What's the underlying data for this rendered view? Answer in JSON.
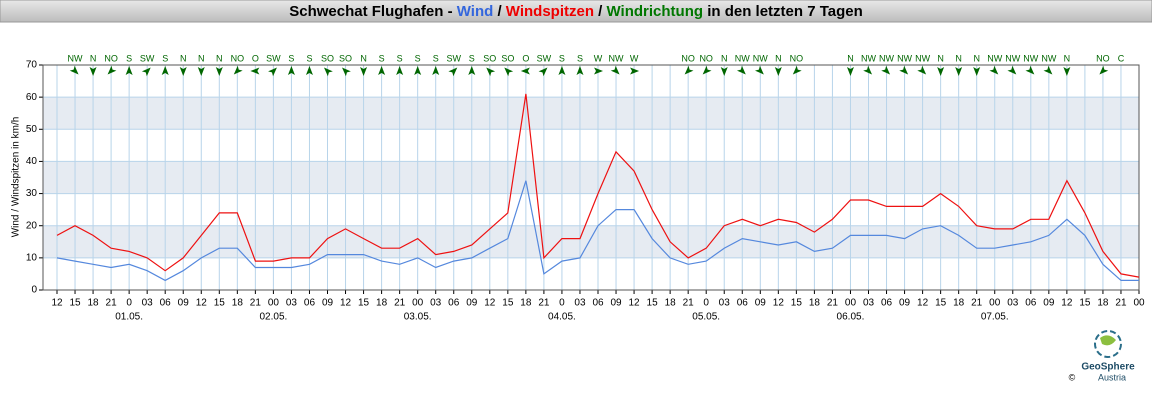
{
  "chart_data": {
    "type": "line",
    "title_parts": [
      "Schwechat Flughafen - ",
      "Wind",
      " / ",
      "Windspitzen",
      " / ",
      "Windrichtung",
      " in den letzten 7 Tagen"
    ],
    "title_colors": [
      "#000000",
      "#3366dd",
      "#000000",
      "#ee0000",
      "#000000",
      "#007700",
      "#000000"
    ],
    "y_label": "Wind / Windspitzen in km/h",
    "categories": [
      "12",
      "15",
      "18",
      "21",
      "0",
      "03",
      "06",
      "09",
      "12",
      "15",
      "18",
      "21",
      "00",
      "03",
      "06",
      "09",
      "12",
      "15",
      "18",
      "21",
      "00",
      "03",
      "06",
      "09",
      "12",
      "15",
      "18",
      "21",
      "0",
      "03",
      "06",
      "09",
      "12",
      "15",
      "18",
      "21",
      "0",
      "03",
      "06",
      "09",
      "12",
      "15",
      "18",
      "21",
      "00",
      "03",
      "06",
      "09",
      "12",
      "15",
      "18",
      "21",
      "00",
      "03",
      "06",
      "09",
      "12",
      "15",
      "18",
      "21",
      "00"
    ],
    "dates": [
      "01.05.",
      "02.05.",
      "03.05.",
      "04.05.",
      "05.05.",
      "06.05.",
      "07.05."
    ],
    "directions": [
      null,
      "NW",
      "N",
      "NO",
      "S",
      "SW",
      "S",
      "N",
      "N",
      "N",
      "NO",
      "O",
      "SW",
      "S",
      "S",
      "SO",
      "SO",
      "N",
      "S",
      "S",
      "S",
      "S",
      "SW",
      "S",
      "SO",
      "SO",
      "O",
      "SW",
      "S",
      "S",
      "W",
      "NW",
      "W",
      null,
      null,
      "NO",
      "NO",
      "N",
      "NW",
      "NW",
      "N",
      "NO",
      null,
      null,
      "N",
      "NW",
      "NW",
      "NW",
      "NW",
      "N",
      "N",
      "N",
      "NW",
      "NW",
      "NW",
      "NW",
      "N",
      null,
      "NO",
      "C",
      null
    ],
    "direction_color": "#006600",
    "series": [
      {
        "name": "Windspitzen",
        "color": "#ee1111",
        "values": [
          17,
          20,
          17,
          13,
          12,
          10,
          6,
          10,
          17,
          24,
          24,
          9,
          9,
          10,
          10,
          16,
          19,
          16,
          13,
          13,
          16,
          11,
          12,
          14,
          19,
          24,
          61,
          10,
          16,
          16,
          30,
          43,
          37,
          25,
          15,
          10,
          13,
          20,
          22,
          20,
          22,
          21,
          18,
          22,
          28,
          28,
          26,
          26,
          26,
          30,
          26,
          20,
          19,
          19,
          22,
          22,
          34,
          24,
          12,
          5,
          4
        ]
      },
      {
        "name": "Wind",
        "color": "#5588dd",
        "values": [
          10,
          9,
          8,
          7,
          8,
          6,
          3,
          6,
          10,
          13,
          13,
          7,
          7,
          7,
          8,
          11,
          11,
          11,
          9,
          8,
          10,
          7,
          9,
          10,
          13,
          16,
          34,
          5,
          9,
          10,
          20,
          25,
          25,
          16,
          10,
          8,
          9,
          13,
          16,
          15,
          14,
          15,
          12,
          13,
          17,
          17,
          17,
          16,
          19,
          20,
          17,
          13,
          13,
          14,
          15,
          17,
          22,
          17,
          8,
          3,
          3
        ]
      }
    ],
    "ylim": [
      0,
      70
    ],
    "yticks": [
      0,
      10,
      20,
      30,
      40,
      50,
      60,
      70
    ],
    "grid": true,
    "logo": [
      "GeoSphere",
      "Austria"
    ],
    "copyright": "©"
  }
}
